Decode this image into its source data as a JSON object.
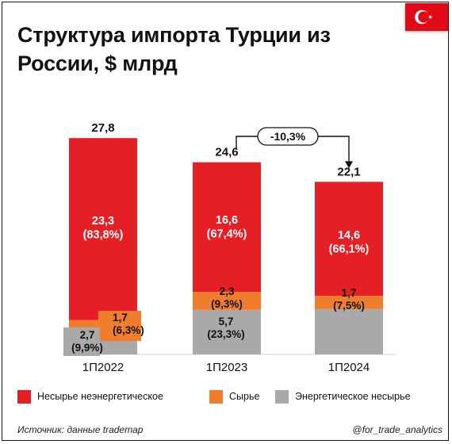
{
  "title": "Структура импорта Турции из России, $ млрд",
  "source": "Источник: данные trademap",
  "handle": "@for_trade_analytics",
  "flag": {
    "icon": "turkey-flag-icon",
    "color": "#e30a17"
  },
  "colors": {
    "non_raw_non_energy": "#e41f26",
    "raw": "#ef7d2c",
    "energy_non_raw": "#a9a9a9"
  },
  "chart_data": {
    "type": "bar",
    "stacked": true,
    "categories": [
      "1П2022",
      "1П2023",
      "1П2024"
    ],
    "series": [
      {
        "name": "Энергетическое несырье",
        "color": "#a9a9a9",
        "values": [
          2.7,
          5.7,
          5.8
        ],
        "labels": [
          "2,7\n(9,9%)",
          "5,7\n(23,3%)",
          ""
        ]
      },
      {
        "name": "Сырье",
        "color": "#ef7d2c",
        "values": [
          1.7,
          2.3,
          1.7
        ],
        "labels": [
          "1,7\n(6,3%)",
          "2,3\n(9,3%)",
          "1,7\n(7,5%)"
        ]
      },
      {
        "name": "Несырье неэнергетическое",
        "color": "#e41f26",
        "values": [
          23.3,
          16.6,
          14.6
        ],
        "labels": [
          "23,3\n(83,8%)",
          "16,6\n(67,4%)",
          "14,6\n(66,1%)"
        ]
      }
    ],
    "totals": [
      "27,8",
      "24,6",
      "22,1"
    ],
    "total_values": [
      27.8,
      24.6,
      22.1
    ],
    "change_annotation": {
      "text": "-10,3%",
      "from_index": 1,
      "to_index": 2
    },
    "ylim": [
      0,
      30
    ],
    "grid": false,
    "legend_position": "bottom"
  },
  "legend": [
    {
      "label": "Несырье неэнергетическое",
      "color": "#e41f26"
    },
    {
      "label": "Сырье",
      "color": "#ef7d2c"
    },
    {
      "label": "Энергетическое несырье",
      "color": "#a9a9a9"
    }
  ]
}
